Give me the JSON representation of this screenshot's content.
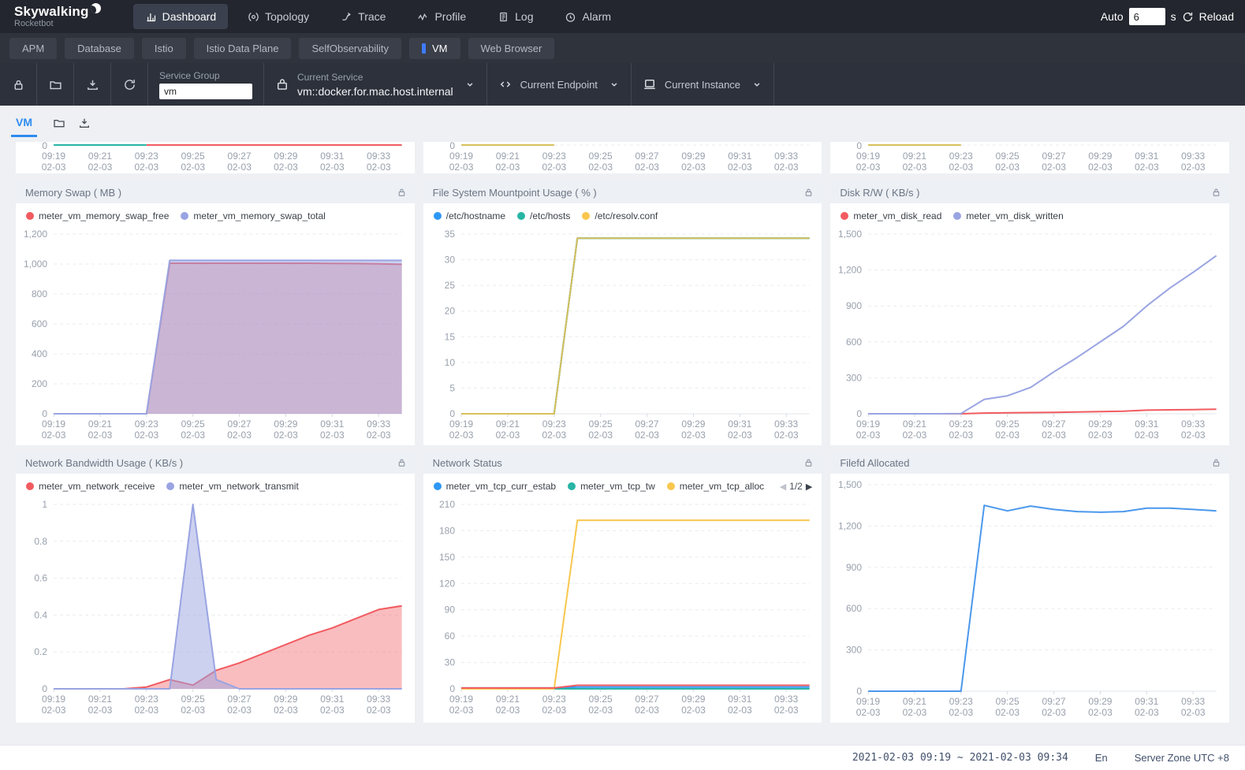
{
  "topnav": {
    "brand": "Skywalking",
    "brand_sub": "Rocketbot",
    "items": [
      {
        "label": "Dashboard",
        "icon": "dashboard-icon",
        "active": true
      },
      {
        "label": "Topology",
        "icon": "topology-icon",
        "active": false
      },
      {
        "label": "Trace",
        "icon": "trace-icon",
        "active": false
      },
      {
        "label": "Profile",
        "icon": "profile-icon",
        "active": false
      },
      {
        "label": "Log",
        "icon": "log-icon",
        "active": false
      },
      {
        "label": "Alarm",
        "icon": "alarm-icon",
        "active": false
      }
    ],
    "auto_label": "Auto",
    "auto_value": "6",
    "auto_unit": "s",
    "reload_label": "Reload"
  },
  "tabs": {
    "items": [
      {
        "label": "APM",
        "active": false
      },
      {
        "label": "Database",
        "active": false
      },
      {
        "label": "Istio",
        "active": false
      },
      {
        "label": "Istio Data Plane",
        "active": false
      },
      {
        "label": "SelfObservability",
        "active": false
      },
      {
        "label": "VM",
        "active": true
      },
      {
        "label": "Web Browser",
        "active": false
      }
    ]
  },
  "toolbar": {
    "service_group_label": "Service Group",
    "service_group_value": "vm",
    "current_service_label": "Current Service",
    "current_service_value": "vm::docker.for.mac.host.internal",
    "current_endpoint_label": "Current Endpoint",
    "current_instance_label": "Current Instance"
  },
  "subtabs": {
    "vm_label": "VM"
  },
  "footer": {
    "time_range": "2021-02-03 09:19 ~ 2021-02-03 09:34",
    "lang": "En",
    "server_zone": "Server Zone UTC +8"
  },
  "chart_data": [
    {
      "type": "line",
      "partial": true,
      "panel": "top-left-partial",
      "visible_y_tick": "0",
      "x_ticks": [
        19,
        21,
        23,
        25,
        27,
        29,
        31,
        33
      ],
      "x_labels": [
        "09:19",
        "09:21",
        "09:23",
        "09:25",
        "09:27",
        "09:29",
        "09:31",
        "09:33"
      ],
      "x_sub": "02-03",
      "segments": [
        {
          "color": "#27b5a5",
          "from": 19,
          "to": 23
        },
        {
          "color": "#f15b60",
          "from": 23,
          "to": 34
        }
      ],
      "dashed_after": false
    },
    {
      "type": "line",
      "partial": true,
      "panel": "top-middle-partial",
      "visible_y_tick": "0",
      "x_ticks": [
        19,
        21,
        23,
        25,
        27,
        29,
        31,
        33
      ],
      "x_labels": [
        "09:19",
        "09:21",
        "09:23",
        "09:25",
        "09:27",
        "09:29",
        "09:31",
        "09:33"
      ],
      "x_sub": "02-03",
      "segments": [
        {
          "color": "#d8c05c",
          "from": 19,
          "to": 23
        }
      ],
      "dashed_after": true
    },
    {
      "type": "line",
      "partial": true,
      "panel": "top-right-partial",
      "visible_y_tick": "0",
      "x_ticks": [
        19,
        21,
        23,
        25,
        27,
        29,
        31,
        33
      ],
      "x_labels": [
        "09:19",
        "09:21",
        "09:23",
        "09:25",
        "09:27",
        "09:29",
        "09:31",
        "09:33"
      ],
      "x_sub": "02-03",
      "segments": [
        {
          "color": "#d8c05c",
          "from": 19,
          "to": 23
        }
      ],
      "dashed_after": true
    },
    {
      "title": "Memory Swap ( MB )",
      "type": "area",
      "x_min": 19,
      "x_max": 34,
      "x_ticks": [
        19,
        21,
        23,
        25,
        27,
        29,
        31,
        33
      ],
      "x_labels": [
        "09:19",
        "09:21",
        "09:23",
        "09:25",
        "09:27",
        "09:29",
        "09:31",
        "09:33"
      ],
      "x_sub": "02-03",
      "ylim": [
        0,
        1200
      ],
      "yticks": [
        0,
        200,
        400,
        600,
        800,
        1000,
        1200
      ],
      "ytick_labels": [
        "0",
        "200",
        "400",
        "600",
        "800",
        "1,000",
        "1,200"
      ],
      "legend": [
        {
          "label": "meter_vm_memory_swap_free",
          "color": "#f15b60"
        },
        {
          "label": "meter_vm_memory_swap_total",
          "color": "#99a4e2"
        }
      ],
      "series": [
        {
          "name": "meter_vm_memory_swap_free",
          "color": "#f15b60",
          "fill": true,
          "fill_opacity": 0.35,
          "values": [
            0,
            0,
            0,
            0,
            0,
            1005,
            1005,
            1005,
            1005,
            1005,
            1005,
            1005,
            1004,
            1003,
            1001,
            998
          ]
        },
        {
          "name": "meter_vm_memory_swap_total",
          "color": "#99a4e2",
          "fill": true,
          "fill_opacity": 0.5,
          "values": [
            0,
            0,
            0,
            0,
            0,
            1024,
            1024,
            1024,
            1024,
            1024,
            1024,
            1024,
            1024,
            1024,
            1024,
            1024
          ]
        }
      ]
    },
    {
      "title": "File System Mountpoint Usage ( % )",
      "type": "line",
      "x_min": 19,
      "x_max": 34,
      "x_ticks": [
        19,
        21,
        23,
        25,
        27,
        29,
        31,
        33
      ],
      "x_labels": [
        "09:19",
        "09:21",
        "09:23",
        "09:25",
        "09:27",
        "09:29",
        "09:31",
        "09:33"
      ],
      "x_sub": "02-03",
      "ylim": [
        0,
        35
      ],
      "yticks": [
        0,
        5,
        10,
        15,
        20,
        25,
        30,
        35
      ],
      "ytick_labels": [
        "0",
        "5",
        "10",
        "15",
        "20",
        "25",
        "30",
        "35"
      ],
      "legend": [
        {
          "label": "/etc/hostname",
          "color": "#2d98f3"
        },
        {
          "label": "/etc/hosts",
          "color": "#27b5a5"
        },
        {
          "label": "/etc/resolv.conf",
          "color": "#f8c74e"
        }
      ],
      "series": [
        {
          "name": "/etc/hostname",
          "color": "#2d98f3",
          "fill": false,
          "values": [
            0,
            0,
            0,
            0,
            0,
            34.2,
            34.2,
            34.2,
            34.2,
            34.2,
            34.2,
            34.2,
            34.2,
            34.2,
            34.2,
            34.2
          ]
        },
        {
          "name": "/etc/hosts",
          "color": "#27b5a5",
          "fill": false,
          "values": [
            0,
            0,
            0,
            0,
            0,
            34.2,
            34.2,
            34.2,
            34.2,
            34.2,
            34.2,
            34.2,
            34.2,
            34.2,
            34.2,
            34.2
          ]
        },
        {
          "name": "/etc/resolv.conf",
          "color": "#d8c05c",
          "fill": false,
          "values": [
            0,
            0,
            0,
            0,
            0,
            34.2,
            34.2,
            34.2,
            34.2,
            34.2,
            34.2,
            34.2,
            34.2,
            34.2,
            34.2,
            34.2
          ]
        }
      ]
    },
    {
      "title": "Disk R/W ( KB/s )",
      "type": "line",
      "x_min": 19,
      "x_max": 34,
      "x_ticks": [
        19,
        21,
        23,
        25,
        27,
        29,
        31,
        33
      ],
      "x_labels": [
        "09:19",
        "09:21",
        "09:23",
        "09:25",
        "09:27",
        "09:29",
        "09:31",
        "09:33"
      ],
      "x_sub": "02-03",
      "ylim": [
        0,
        1500
      ],
      "yticks": [
        0,
        300,
        600,
        900,
        1200,
        1500
      ],
      "ytick_labels": [
        "0",
        "300",
        "600",
        "900",
        "1,200",
        "1,500"
      ],
      "legend": [
        {
          "label": "meter_vm_disk_read",
          "color": "#f15b60"
        },
        {
          "label": "meter_vm_disk_written",
          "color": "#99a4e2"
        }
      ],
      "series": [
        {
          "name": "meter_vm_disk_read",
          "color": "#f15b60",
          "fill": false,
          "values": [
            0,
            0,
            0,
            0,
            0,
            6,
            8,
            10,
            12,
            15,
            18,
            22,
            30,
            33,
            35,
            38
          ]
        },
        {
          "name": "meter_vm_disk_written",
          "color": "#99a4e2",
          "fill": false,
          "values": [
            0,
            0,
            0,
            0,
            2,
            120,
            150,
            220,
            350,
            470,
            600,
            730,
            900,
            1050,
            1180,
            1320
          ]
        }
      ]
    },
    {
      "title": "Network Bandwidth Usage ( KB/s )",
      "type": "area",
      "x_min": 19,
      "x_max": 34,
      "x_ticks": [
        19,
        21,
        23,
        25,
        27,
        29,
        31,
        33
      ],
      "x_labels": [
        "09:19",
        "09:21",
        "09:23",
        "09:25",
        "09:27",
        "09:29",
        "09:31",
        "09:33"
      ],
      "x_sub": "02-03",
      "ylim": [
        0,
        1
      ],
      "yticks": [
        0,
        0.2,
        0.4,
        0.6,
        0.8,
        1
      ],
      "ytick_labels": [
        "0",
        "0.2",
        "0.4",
        "0.6",
        "0.8",
        "1"
      ],
      "legend": [
        {
          "label": "meter_vm_network_receive",
          "color": "#f15b60"
        },
        {
          "label": "meter_vm_network_transmit",
          "color": "#99a4e2"
        }
      ],
      "series": [
        {
          "name": "meter_vm_network_receive",
          "color": "#f15b60",
          "fill": true,
          "fill_opacity": 0.4,
          "values": [
            0,
            0,
            0,
            0,
            0.01,
            0.05,
            0.02,
            0.1,
            0.14,
            0.19,
            0.24,
            0.29,
            0.33,
            0.38,
            0.43,
            0.45
          ]
        },
        {
          "name": "meter_vm_network_transmit",
          "color": "#99a4e2",
          "fill": true,
          "fill_opacity": 0.5,
          "values": [
            0,
            0,
            0,
            0,
            0,
            0,
            1,
            0.05,
            0,
            0,
            0,
            0,
            0,
            0,
            0,
            0
          ]
        }
      ]
    },
    {
      "title": "Network Status",
      "type": "line",
      "x_min": 19,
      "x_max": 34,
      "x_ticks": [
        19,
        21,
        23,
        25,
        27,
        29,
        31,
        33
      ],
      "x_labels": [
        "09:19",
        "09:21",
        "09:23",
        "09:25",
        "09:27",
        "09:29",
        "09:31",
        "09:33"
      ],
      "x_sub": "02-03",
      "ylim": [
        0,
        210
      ],
      "yticks": [
        0,
        30,
        60,
        90,
        120,
        150,
        180,
        210
      ],
      "ytick_labels": [
        "0",
        "30",
        "60",
        "90",
        "120",
        "150",
        "180",
        "210"
      ],
      "legend": [
        {
          "label": "meter_vm_tcp_curr_estab",
          "color": "#2d98f3"
        },
        {
          "label": "meter_vm_tcp_tw",
          "color": "#27b5a5"
        },
        {
          "label": "meter_vm_tcp_alloc",
          "color": "#f8c74e"
        }
      ],
      "legend_pager": {
        "prev": "◀",
        "text": "1/2",
        "next": "▶"
      },
      "series": [
        {
          "name": "meter_vm_tcp_curr_estab",
          "color": "#2d98f3",
          "fill": false,
          "values": [
            1,
            1,
            1,
            1,
            1,
            2,
            2,
            2,
            2,
            2,
            2,
            2,
            2,
            2,
            2,
            2
          ]
        },
        {
          "name": "meter_vm_tcp_tw",
          "color": "#27b5a5",
          "fill": false,
          "values": [
            0,
            0,
            0,
            0,
            0,
            0,
            0,
            0,
            0,
            0,
            0,
            0,
            0,
            0,
            0,
            0
          ]
        },
        {
          "name": "meter_vm_tcp_alloc",
          "color": "#f8c74e",
          "fill": false,
          "values": [
            0,
            0,
            0,
            0,
            0,
            192,
            192,
            192,
            192,
            192,
            192,
            192,
            192,
            192,
            192,
            192
          ]
        },
        {
          "name": "",
          "color": "#f15b60",
          "fill": false,
          "values": [
            1,
            1,
            1,
            1,
            1,
            4,
            4,
            4,
            4,
            4,
            4,
            4,
            4,
            4,
            4,
            4
          ]
        }
      ]
    },
    {
      "title": "Filefd Allocated",
      "type": "line",
      "x_min": 19,
      "x_max": 34,
      "x_ticks": [
        19,
        21,
        23,
        25,
        27,
        29,
        31,
        33
      ],
      "x_labels": [
        "09:19",
        "09:21",
        "09:23",
        "09:25",
        "09:27",
        "09:29",
        "09:31",
        "09:33"
      ],
      "x_sub": "02-03",
      "ylim": [
        0,
        1500
      ],
      "yticks": [
        0,
        300,
        600,
        900,
        1200,
        1500
      ],
      "ytick_labels": [
        "0",
        "300",
        "600",
        "900",
        "1,200",
        "1,500"
      ],
      "legend": [],
      "series": [
        {
          "name": "filefd_allocated",
          "color": "#4b98ed",
          "fill": false,
          "values": [
            0,
            0,
            0,
            0,
            0,
            1350,
            1310,
            1345,
            1320,
            1305,
            1300,
            1305,
            1330,
            1330,
            1320,
            1310
          ]
        }
      ]
    }
  ]
}
